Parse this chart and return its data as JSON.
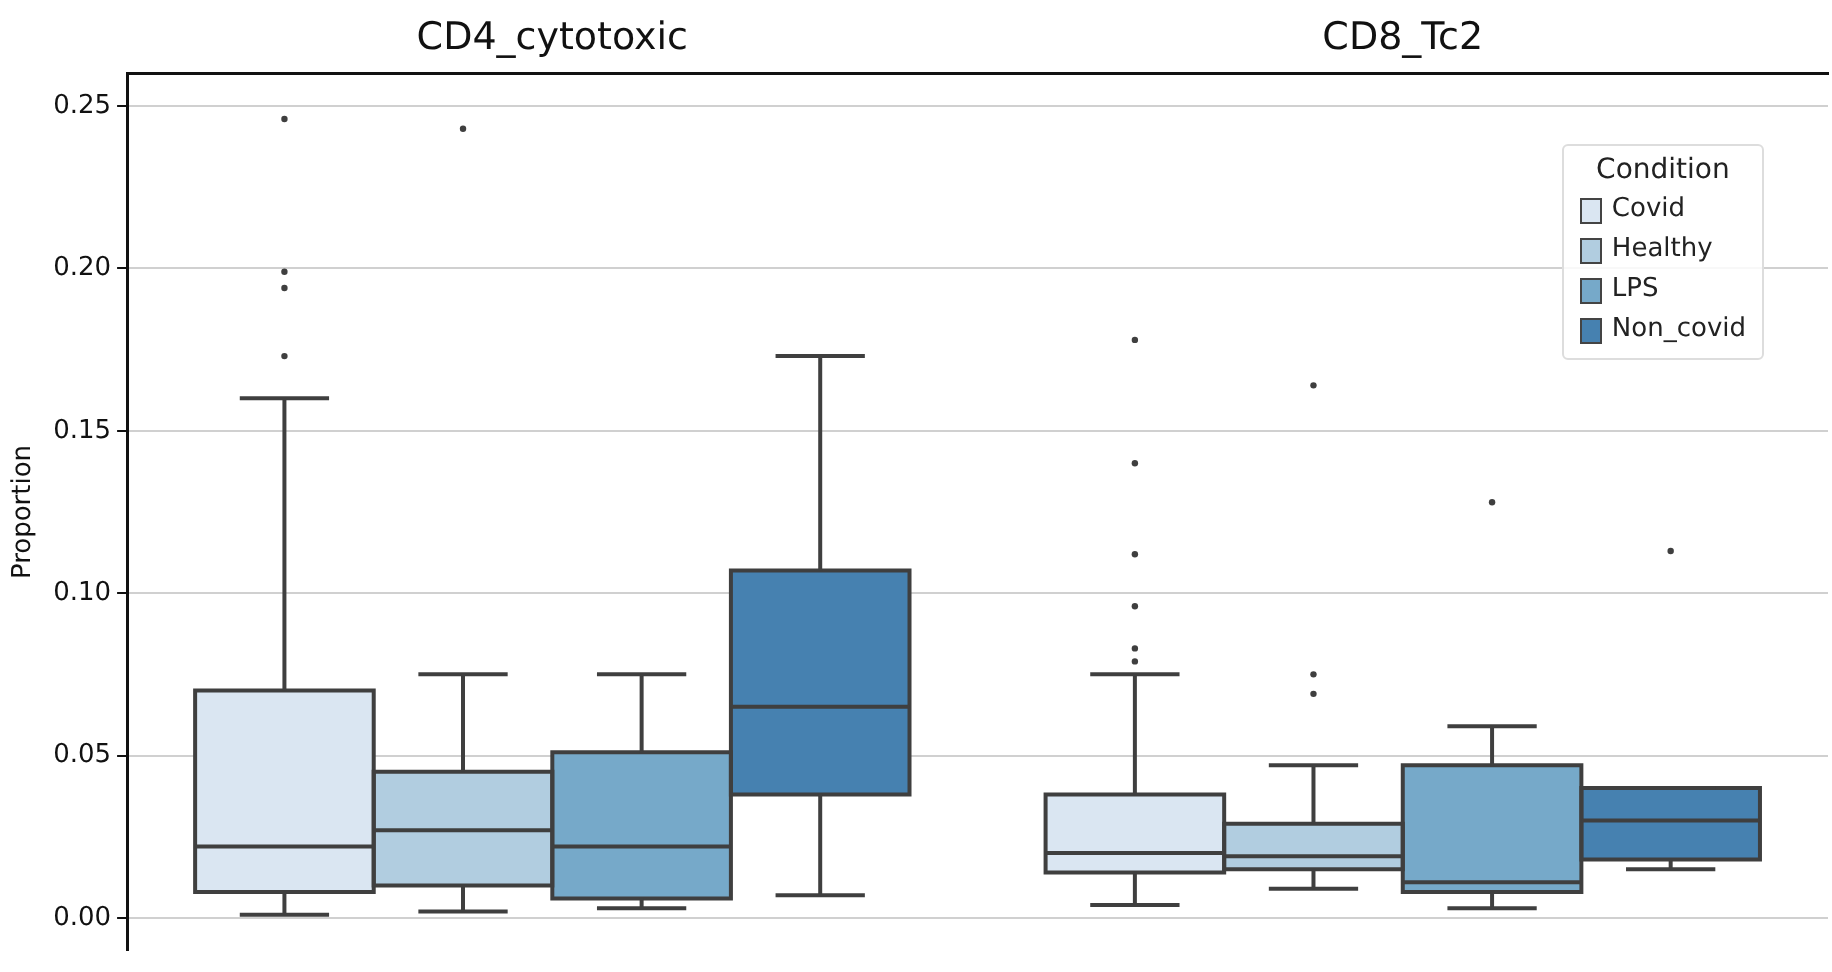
{
  "chart_data": {
    "type": "box",
    "ylabel": "Proportion",
    "legend_title": "Condition",
    "legend": "top right",
    "grid": "y",
    "categories": [
      "CD4_cytotoxic",
      "CD8_Tc2"
    ],
    "ylim": [
      -0.01,
      0.26
    ],
    "yticks": [
      {
        "value": 0,
        "label": "0.00"
      },
      0.05,
      {
        "value": 0.1,
        "label": "0.10"
      },
      0.15,
      {
        "value": 0.2,
        "label": "0.20"
      },
      0.25
    ],
    "series": [
      {
        "name": "Covid",
        "color": "#dae6f2",
        "boxes": [
          {
            "low": 0.001,
            "q1": 0.008,
            "median": 0.022,
            "q3": 0.07,
            "high": 0.16,
            "outliers": [
              0.173,
              0.194,
              0.199,
              0.246
            ]
          },
          {
            "low": 0.004,
            "q1": 0.014,
            "median": 0.02,
            "q3": 0.038,
            "high": 0.075,
            "outliers": [
              0.079,
              0.083,
              0.096,
              0.112,
              0.14,
              0.178
            ]
          }
        ]
      },
      {
        "name": "Healthy",
        "color": "#b1cde0",
        "boxes": [
          {
            "low": 0.002,
            "q1": 0.01,
            "median": 0.027,
            "q3": 0.045,
            "high": 0.075,
            "outliers": [
              0.243
            ]
          },
          {
            "low": 0.009,
            "q1": 0.015,
            "median": 0.019,
            "q3": 0.029,
            "high": 0.047,
            "outliers": [
              0.069,
              0.075,
              0.164
            ]
          }
        ]
      },
      {
        "name": "LPS",
        "color": "#76a9c9",
        "boxes": [
          {
            "low": 0.003,
            "q1": 0.006,
            "median": 0.022,
            "q3": 0.051,
            "high": 0.075
          },
          {
            "low": 0.003,
            "q1": 0.008,
            "median": 0.011,
            "q3": 0.047,
            "high": 0.059,
            "outliers": [
              0.128
            ]
          }
        ]
      },
      {
        "name": "Non_covid",
        "color": "#4681b0",
        "boxes": [
          {
            "low": 0.007,
            "q1": 0.038,
            "median": 0.065,
            "q3": 0.107,
            "high": 0.173
          },
          {
            "low": 0.015,
            "q1": 0.018,
            "median": 0.03,
            "q3": 0.04,
            "high": 0.04,
            "outliers": [
              0.113
            ]
          }
        ]
      }
    ]
  }
}
